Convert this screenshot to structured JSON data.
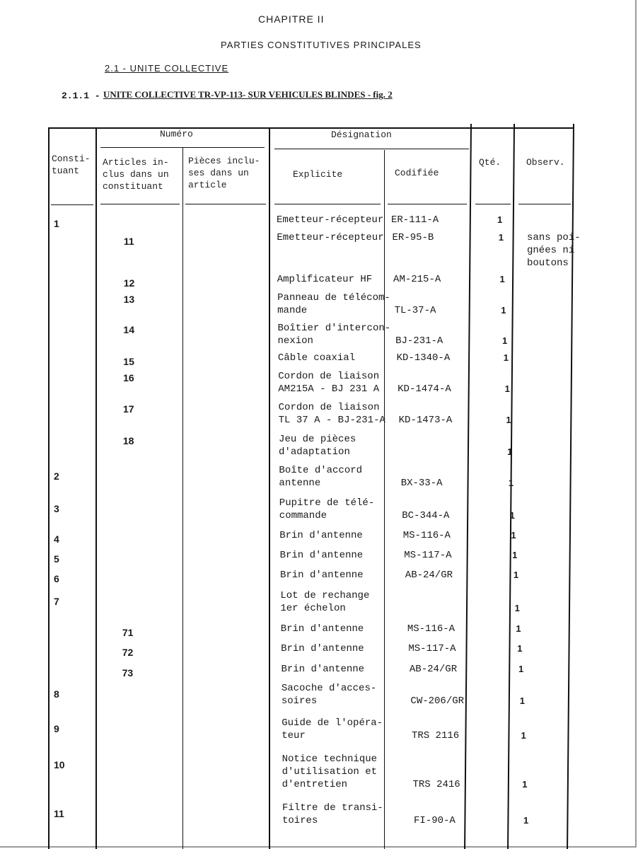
{
  "chapter": "CHAPITRE II",
  "section_title": "PARTIES CONSTITUTIVES PRINCIPALES",
  "subsection": "2.1 - UNITE COLLECTIVE",
  "subsubsection_number": "2.1.1 -",
  "subsubsection_title": "UNITE COLLECTIVE TR-VP-113- SUR VEHICULES BLINDES - fig. 2",
  "table": {
    "headers": {
      "constituant": "Consti-\ntuant",
      "numero": "Numéro",
      "articles": "Articles in-\nclus dans un\nconstituant",
      "pieces": "Pièces inclu-\nses dans un\narticle",
      "designation": "Désignation",
      "explicite": "Explicite",
      "codifiee": "Codifiée",
      "qte": "Qté.",
      "observ": "Observ."
    },
    "rows": [
      {
        "constituant": "1",
        "article": "",
        "explicite": "Emetteur-récepteur",
        "codifiee": "ER-111-A",
        "qte": "1",
        "observ": ""
      },
      {
        "constituant": "",
        "article": "11",
        "explicite": "Emetteur-récepteur",
        "codifiee": "ER-95-B",
        "qte": "1",
        "observ": "sans poi-\ngnées ni\nboutons"
      },
      {
        "constituant": "",
        "article": "12",
        "explicite": "Amplificateur HF",
        "codifiee": "AM-215-A",
        "qte": "1",
        "observ": ""
      },
      {
        "constituant": "",
        "article": "13",
        "explicite": "Panneau de télécom-\nmande",
        "codifiee": "TL-37-A",
        "qte": "1",
        "observ": ""
      },
      {
        "constituant": "",
        "article": "14",
        "explicite": "Boîtier d'intercon-\nnexion",
        "codifiee": "BJ-231-A",
        "qte": "1",
        "observ": ""
      },
      {
        "constituant": "",
        "article": "15",
        "explicite": "Câble coaxial",
        "codifiee": "KD-1340-A",
        "qte": "1",
        "observ": ""
      },
      {
        "constituant": "",
        "article": "16",
        "explicite": "Cordon de liaison\nAM215A - BJ 231 A",
        "codifiee": "KD-1474-A",
        "qte": "1",
        "observ": ""
      },
      {
        "constituant": "",
        "article": "17",
        "explicite": "Cordon de liaison\nTL 37 A - BJ-231-A",
        "codifiee": "KD-1473-A",
        "qte": "1",
        "observ": ""
      },
      {
        "constituant": "",
        "article": "18",
        "explicite": "Jeu de pièces\nd'adaptation",
        "codifiee": "",
        "qte": "1",
        "observ": ""
      },
      {
        "constituant": "2",
        "article": "",
        "explicite": "Boîte d'accord\nantenne",
        "codifiee": "BX-33-A",
        "qte": "1",
        "observ": ""
      },
      {
        "constituant": "3",
        "article": "",
        "explicite": "Pupitre de télé-\ncommande",
        "codifiee": "BC-344-A",
        "qte": "1",
        "observ": ""
      },
      {
        "constituant": "4",
        "article": "",
        "explicite": "Brin d'antenne",
        "codifiee": "MS-116-A",
        "qte": "1",
        "observ": ""
      },
      {
        "constituant": "5",
        "article": "",
        "explicite": "Brin d'antenne",
        "codifiee": "MS-117-A",
        "qte": "1",
        "observ": ""
      },
      {
        "constituant": "6",
        "article": "",
        "explicite": "Brin d'antenne",
        "codifiee": "AB-24/GR",
        "qte": "1",
        "observ": ""
      },
      {
        "constituant": "7",
        "article": "",
        "explicite": "Lot de rechange\n1er échelon",
        "codifiee": "",
        "qte": "1",
        "observ": ""
      },
      {
        "constituant": "",
        "article": "71",
        "explicite": "Brin d'antenne",
        "codifiee": "MS-116-A",
        "qte": "1",
        "observ": ""
      },
      {
        "constituant": "",
        "article": "72",
        "explicite": "Brin d'antenne",
        "codifiee": "MS-117-A",
        "qte": "1",
        "observ": ""
      },
      {
        "constituant": "",
        "article": "73",
        "explicite": "Brin d'antenne",
        "codifiee": "AB-24/GR",
        "qte": "1",
        "observ": ""
      },
      {
        "constituant": "8",
        "article": "",
        "explicite": "Sacoche d'acces-\nsoires",
        "codifiee": "CW-206/GR",
        "qte": "1",
        "observ": ""
      },
      {
        "constituant": "9",
        "article": "",
        "explicite": "Guide de l'opéra-\nteur",
        "codifiee": "TRS 2116",
        "qte": "1",
        "observ": ""
      },
      {
        "constituant": "10",
        "article": "",
        "explicite": "Notice technique\nd'utilisation et\nd'entretien",
        "codifiee": "TRS 2416",
        "qte": "1",
        "observ": ""
      },
      {
        "constituant": "11",
        "article": "",
        "explicite": "Filtre de transi-\ntoires",
        "codifiee": "FI-90-A",
        "qte": "1",
        "observ": ""
      }
    ]
  }
}
